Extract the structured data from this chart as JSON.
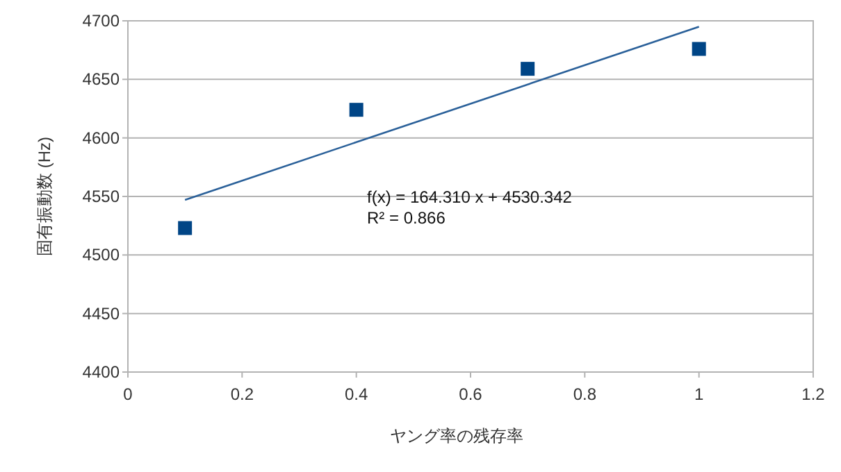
{
  "chart_data": {
    "type": "scatter",
    "xlabel": "ヤング率の残存率",
    "ylabel": "固有振動数 (Hz)",
    "xlim": [
      0,
      1.2
    ],
    "xticks": [
      0,
      0.2,
      0.4,
      0.6,
      0.8,
      1,
      1.2
    ],
    "ylim": [
      4400,
      4700
    ],
    "yticks": [
      4400,
      4450,
      4500,
      4550,
      4600,
      4650,
      4700
    ],
    "grid": "y",
    "series": [
      {
        "marker": "square",
        "color": "#004586",
        "x": [
          0.1,
          0.4,
          0.7,
          1.0
        ],
        "values": [
          4523,
          4624,
          4659,
          4676
        ]
      },
      {
        "type": "line",
        "color": "#2a6099",
        "x": [
          0.1,
          1.0
        ],
        "values": [
          4547,
          4695
        ]
      }
    ],
    "annotations": [
      "f(x) = 164.310 x + 4530.342",
      "R² = 0.866"
    ]
  }
}
